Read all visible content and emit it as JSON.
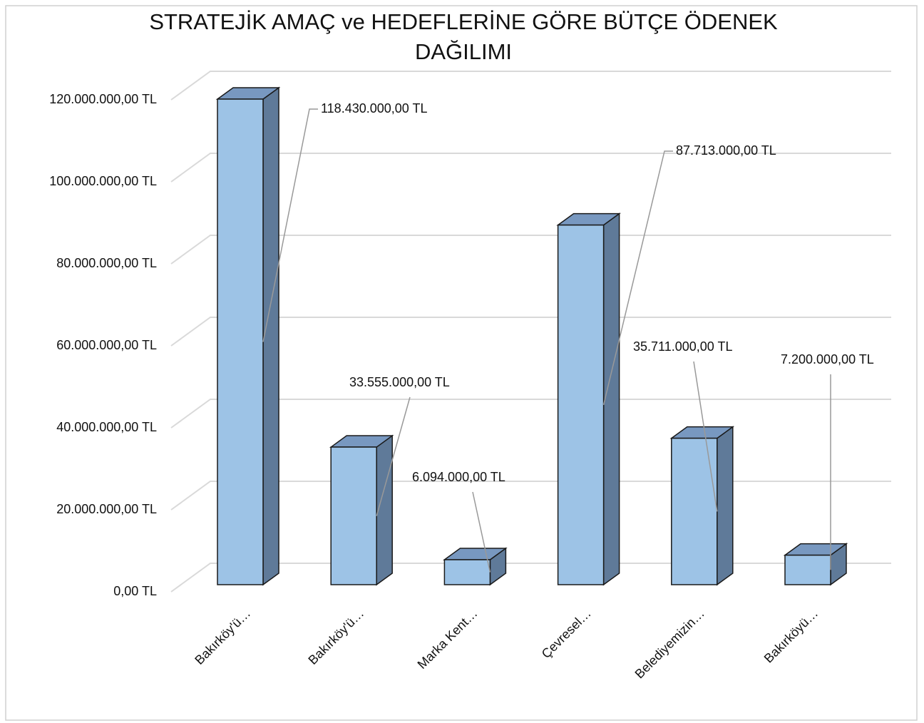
{
  "chart_data": {
    "type": "bar3d",
    "title": "STRATEJİK AMAÇ ve HEDEFLERİNE GÖRE BÜTÇE ÖDENEK DAĞILIMI",
    "categories": [
      "Bakırköy'ü…",
      "Bakırköy'ü…",
      "Marka Kent…",
      "Çevresel…",
      "Belediyemizin…",
      "Bakırköyü…"
    ],
    "values": [
      118430000,
      33555000,
      6094000,
      87713000,
      35711000,
      7200000
    ],
    "value_labels": [
      "118.430.000,00 TL",
      "33.555.000,00 TL",
      "6.094.000,00 TL",
      "87.713.000,00 TL",
      "35.711.000,00 TL",
      "7.200.000,00 TL"
    ],
    "color": "#9dc3e6",
    "ylim": [
      0,
      120000000
    ],
    "yticks": [
      {
        "value": 0,
        "label": "0,00 TL"
      },
      {
        "value": 20000000,
        "label": "20.000.000,00 TL"
      },
      {
        "value": 40000000,
        "label": "40.000.000,00 TL"
      },
      {
        "value": 60000000,
        "label": "60.000.000,00 TL"
      },
      {
        "value": 80000000,
        "label": "80.000.000,00 TL"
      },
      {
        "value": 100000000,
        "label": "100.000.000,00 TL"
      },
      {
        "value": 120000000,
        "label": "120.000.000,00 TL"
      }
    ],
    "grid": true
  }
}
